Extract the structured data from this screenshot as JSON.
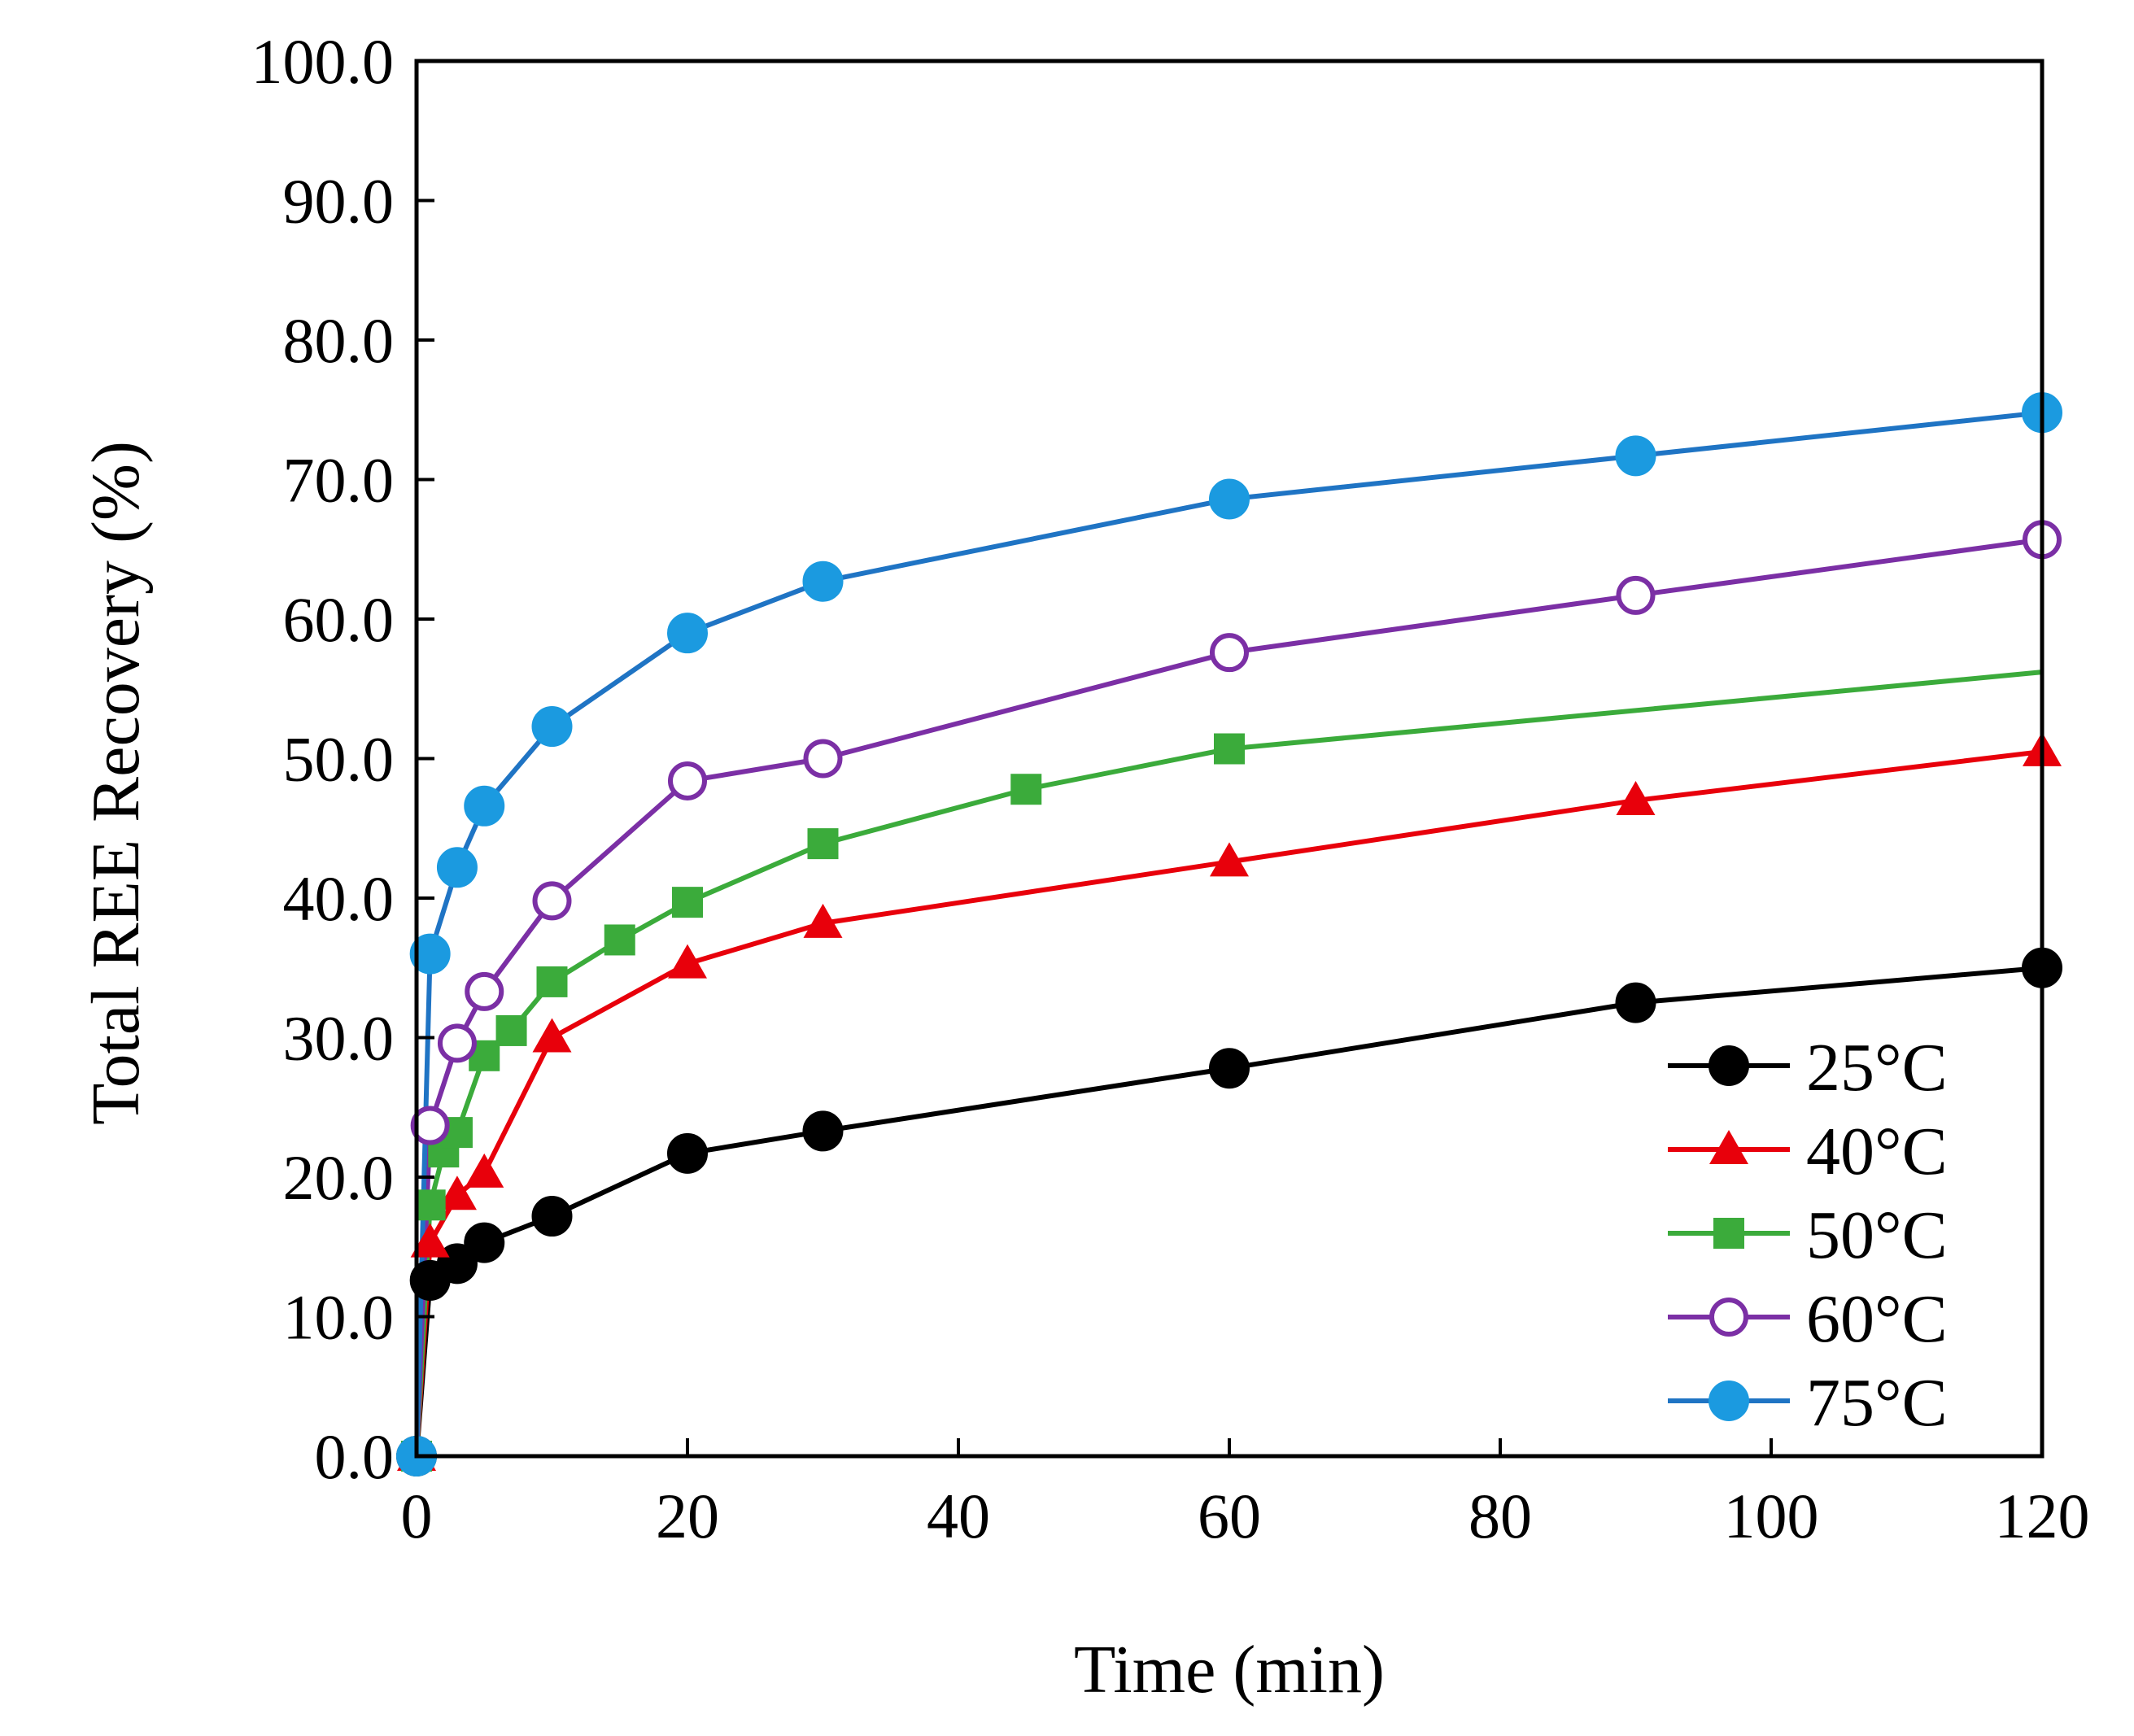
{
  "chart_data": {
    "type": "line",
    "title": "",
    "xlabel": "Time (min)",
    "ylabel": "Total REE Recovery (%)",
    "xlim": [
      0,
      120
    ],
    "ylim": [
      0,
      100
    ],
    "x_ticks": [
      "0",
      "20",
      "40",
      "60",
      "80",
      "100",
      "120"
    ],
    "y_ticks": [
      "0.0",
      "10.0",
      "20.0",
      "30.0",
      "40.0",
      "50.0",
      "60.0",
      "70.0",
      "80.0",
      "90.0",
      "100.0"
    ],
    "grid": false,
    "legend_position": "bottom-right",
    "series": [
      {
        "name": "25°C",
        "color": "#000000",
        "marker": "circle-filled",
        "x": [
          0,
          1,
          3,
          5,
          10,
          20,
          30,
          60,
          90,
          120
        ],
        "y": [
          0.0,
          12.6,
          13.8,
          15.3,
          17.2,
          21.7,
          23.3,
          27.8,
          32.5,
          35.0
        ]
      },
      {
        "name": "40°C",
        "color": "#e8000b",
        "marker": "triangle-filled",
        "x": [
          0,
          1,
          3,
          5,
          10,
          20,
          30,
          60,
          90,
          120
        ],
        "y": [
          0.0,
          15.3,
          18.7,
          20.3,
          30.0,
          35.3,
          38.2,
          42.6,
          47.0,
          50.5
        ]
      },
      {
        "name": "50°C",
        "color": "#3bab3b",
        "marker": "square-filled",
        "x": [
          0,
          1,
          2,
          3,
          5,
          7,
          10,
          15,
          20,
          30,
          45,
          60,
          120
        ],
        "y": [
          0.0,
          18.0,
          21.8,
          23.2,
          28.7,
          30.5,
          34.0,
          37.0,
          39.7,
          43.9,
          47.8,
          50.7,
          56.2
        ],
        "markers_shown": [
          true,
          true,
          true,
          true,
          true,
          true,
          true,
          true,
          true,
          true,
          true,
          true,
          false
        ]
      },
      {
        "name": "60°C",
        "color": "#7b2fa5",
        "marker": "circle-open",
        "x": [
          0,
          1,
          3,
          5,
          10,
          20,
          30,
          60,
          90,
          120
        ],
        "y": [
          0.0,
          23.7,
          29.6,
          33.3,
          39.8,
          48.4,
          50.0,
          57.6,
          61.7,
          65.7
        ]
      },
      {
        "name": "75°C",
        "color": "#1b9ae0",
        "line_color": "#1f74c4",
        "marker": "circle-filled",
        "x": [
          0,
          1,
          3,
          5,
          10,
          20,
          30,
          60,
          90,
          120
        ],
        "y": [
          0.0,
          36.0,
          42.2,
          46.6,
          52.3,
          59.0,
          62.7,
          68.6,
          71.7,
          74.8
        ]
      }
    ]
  }
}
